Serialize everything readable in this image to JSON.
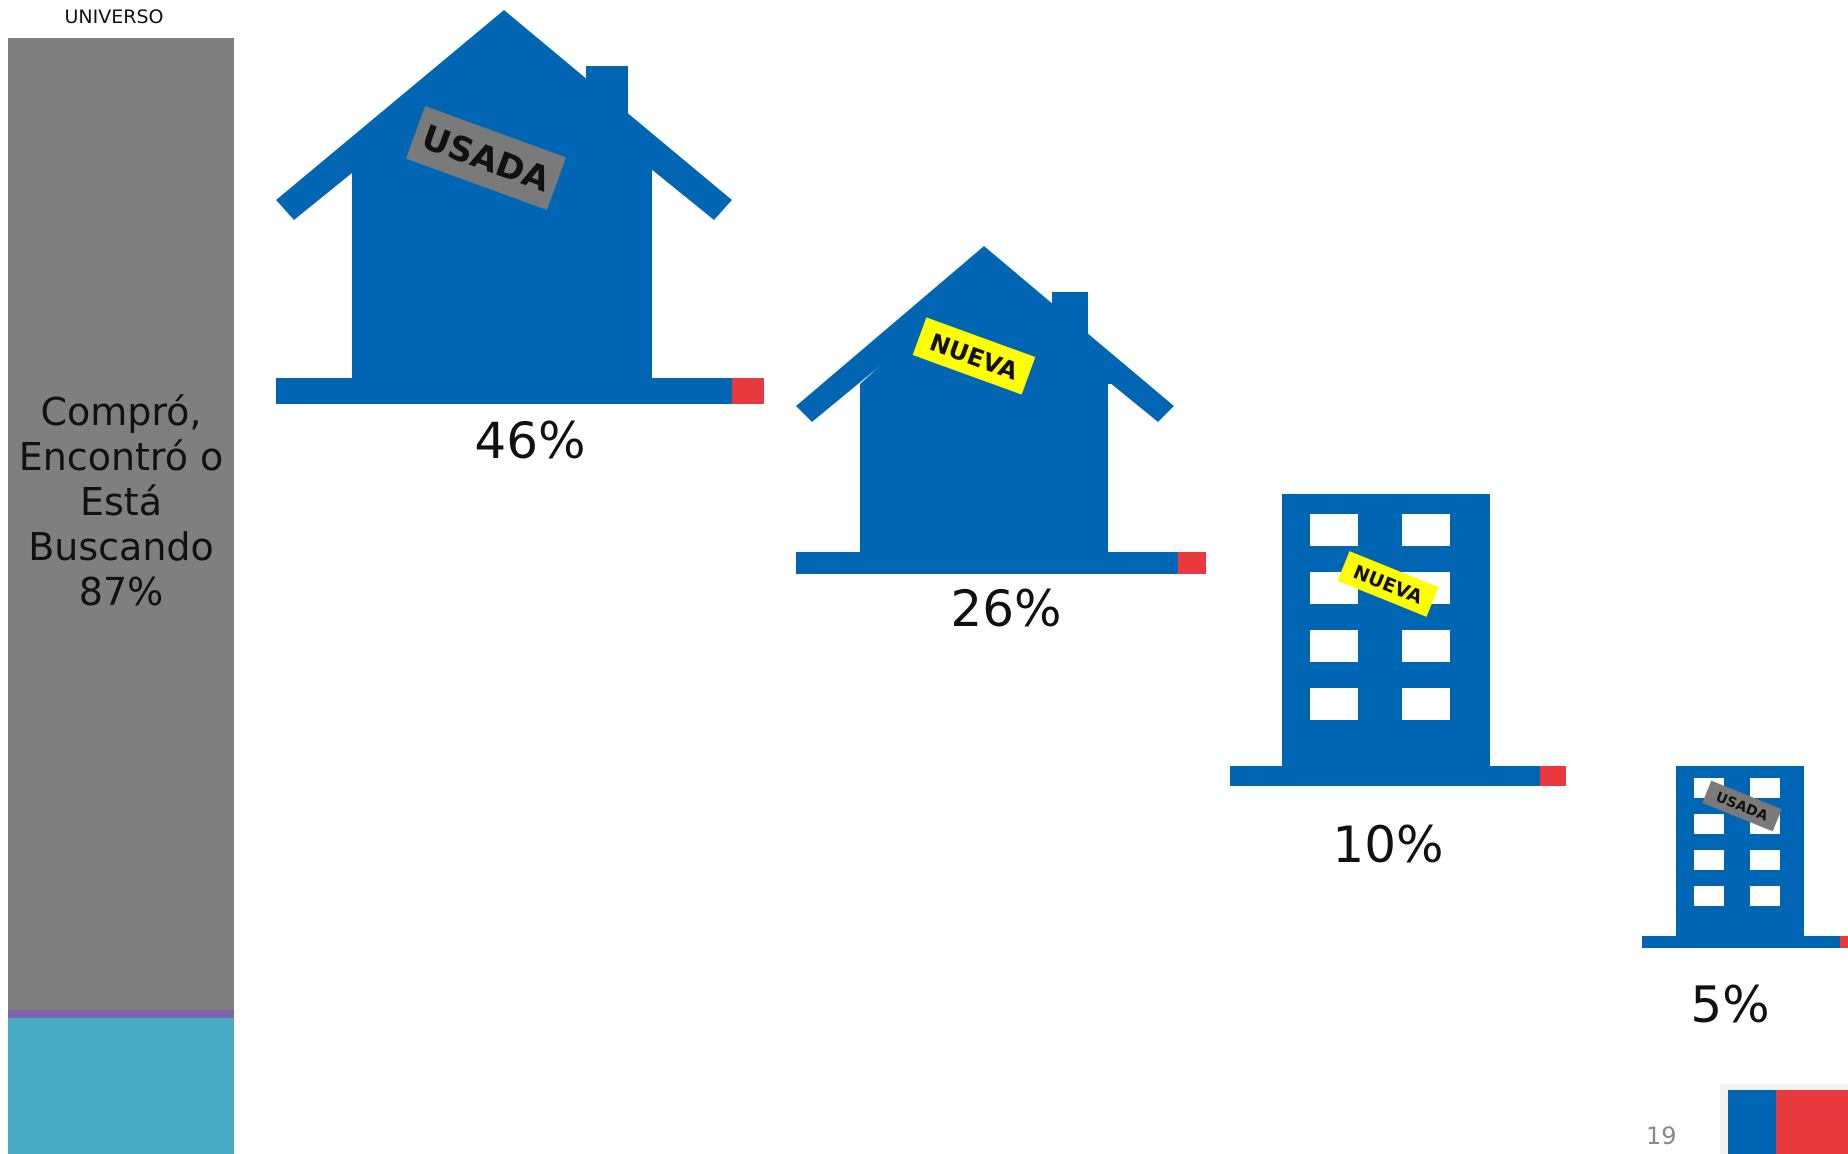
{
  "universe": {
    "label": "UNIVERSO",
    "text": "Compró,\nEncontró o\nEstá\nBuscando\n87%"
  },
  "items": [
    {
      "type": "house",
      "tag": "USADA",
      "tag_color": "#7a7a7a",
      "tag_text_color": "#111111",
      "percent": "46%"
    },
    {
      "type": "house",
      "tag": "NUEVA",
      "tag_color": "#ffff00",
      "tag_text_color": "#111111",
      "percent": "26%"
    },
    {
      "type": "building",
      "tag": "NUEVA",
      "tag_color": "#ffff00",
      "tag_text_color": "#111111",
      "percent": "10%"
    },
    {
      "type": "building",
      "tag": "USADA",
      "tag_color": "#7a7a7a",
      "tag_text_color": "#111111",
      "percent": "5%"
    }
  ],
  "page_number": "19",
  "colors": {
    "icon_blue": "#0066b3",
    "accent_red": "#e8393f",
    "universe_gray": "#7f7f7f",
    "universe_teal": "#4aabc4",
    "universe_purple": "#7e64ad"
  }
}
